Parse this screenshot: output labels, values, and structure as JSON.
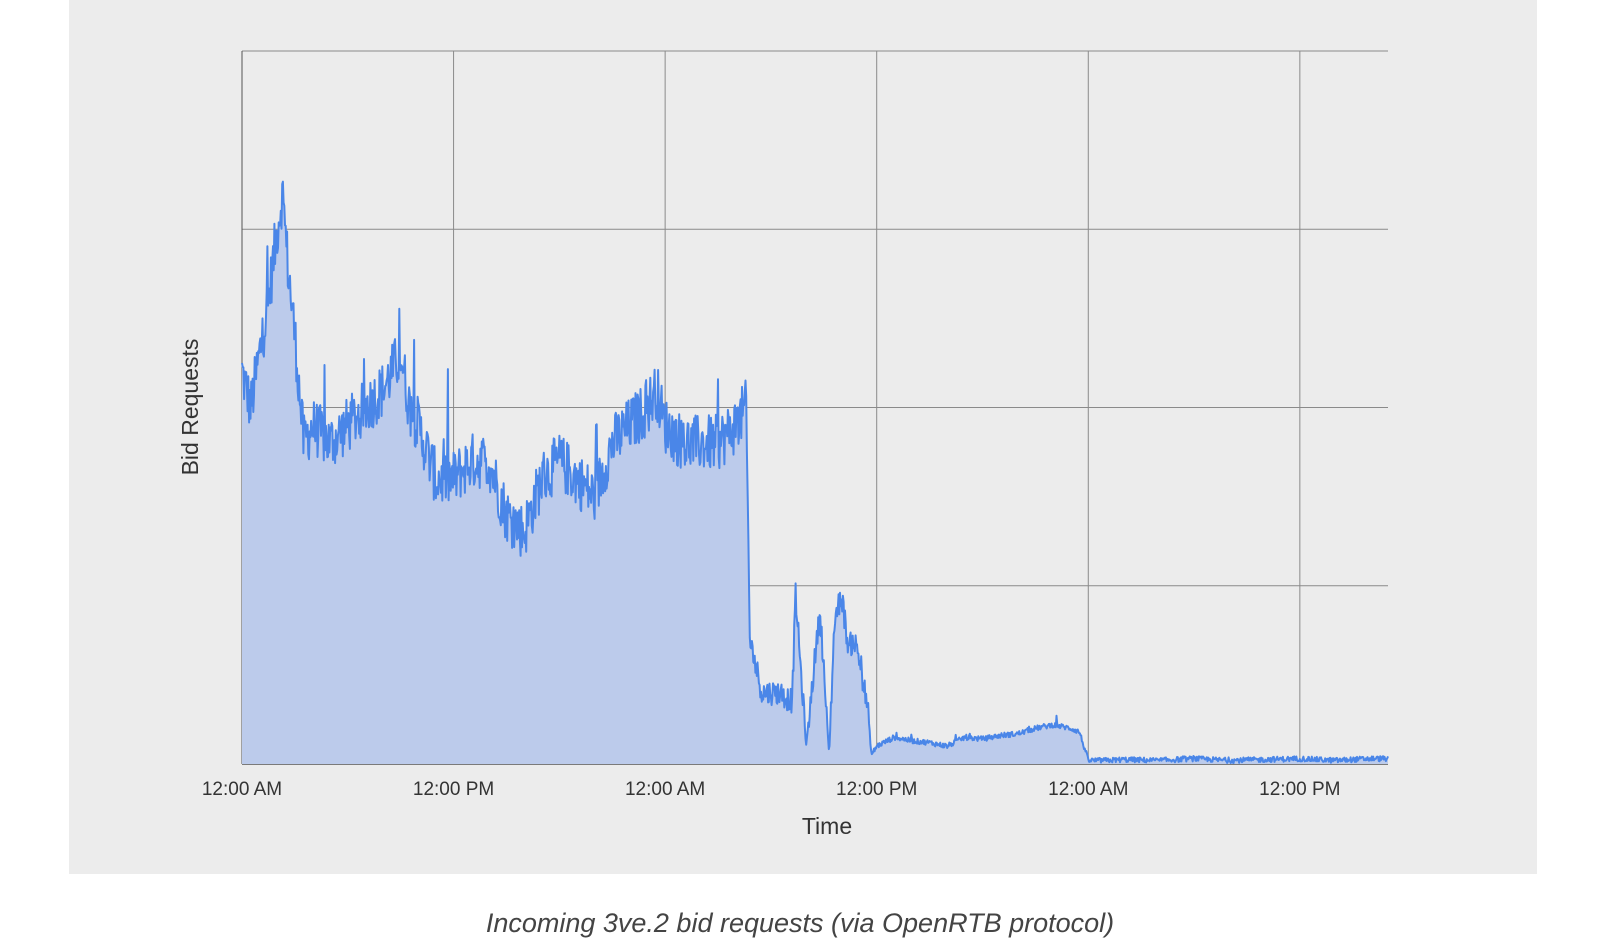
{
  "chart_data": {
    "type": "area",
    "xlabel": "Time",
    "ylabel": "Bid Requests",
    "x_tick_labels": [
      "12:00 AM",
      "12:00 PM",
      "12:00 AM",
      "12:00 PM",
      "12:00 AM",
      "12:00 PM"
    ],
    "x_unit": "hours",
    "xlim": [
      0,
      65
    ],
    "ylim": [
      0,
      4
    ],
    "y_grid_lines": 4,
    "y_tick_labels_shown": false,
    "grid": true,
    "legend": "none",
    "series": [
      {
        "x": [
          0,
          0.5,
          1,
          1.5,
          2,
          2.3,
          2.6,
          3,
          3.5,
          4,
          5,
          6,
          7,
          8,
          8.5,
          9,
          9.5,
          10,
          11,
          12,
          13,
          14,
          15,
          16,
          17,
          18,
          19,
          20,
          21,
          22,
          23,
          23.5,
          24,
          25,
          26,
          27,
          28,
          28.6,
          28.8,
          29.5,
          30.5,
          31.2,
          31.4,
          32,
          32.6,
          32.8,
          33.3,
          33.6,
          34,
          34.4,
          34.7,
          35,
          35.5,
          35.7,
          36,
          37,
          38,
          39,
          40,
          41,
          42,
          43,
          44,
          45,
          46,
          47,
          47.5,
          48,
          49,
          50,
          52,
          54,
          56,
          58,
          60,
          62,
          64,
          65
        ],
        "y": [
          2.2,
          2.0,
          2.3,
          2.6,
          3.0,
          3.2,
          2.8,
          2.4,
          1.8,
          1.9,
          1.8,
          1.9,
          2.0,
          2.1,
          2.2,
          2.3,
          2.0,
          1.9,
          1.6,
          1.6,
          1.7,
          1.7,
          1.4,
          1.3,
          1.6,
          1.7,
          1.6,
          1.5,
          1.8,
          1.9,
          2.0,
          2.1,
          1.9,
          1.8,
          1.8,
          1.8,
          1.9,
          2.0,
          0.7,
          0.4,
          0.4,
          0.35,
          0.95,
          0.1,
          0.7,
          0.85,
          0.05,
          0.8,
          0.95,
          0.65,
          0.7,
          0.6,
          0.3,
          0.05,
          0.1,
          0.15,
          0.13,
          0.12,
          0.1,
          0.15,
          0.14,
          0.16,
          0.17,
          0.2,
          0.22,
          0.2,
          0.18,
          0.02,
          0.02,
          0.025,
          0.02,
          0.03,
          0.02,
          0.025,
          0.03,
          0.02,
          0.03,
          0.03
        ]
      }
    ],
    "colors": {
      "line": "#4a86e8",
      "fill": "#bccbeb",
      "grid": "#8a8a8a",
      "background": "#ececec"
    }
  },
  "caption": "Incoming 3ve.2 bid requests (via OpenRTB protocol)"
}
